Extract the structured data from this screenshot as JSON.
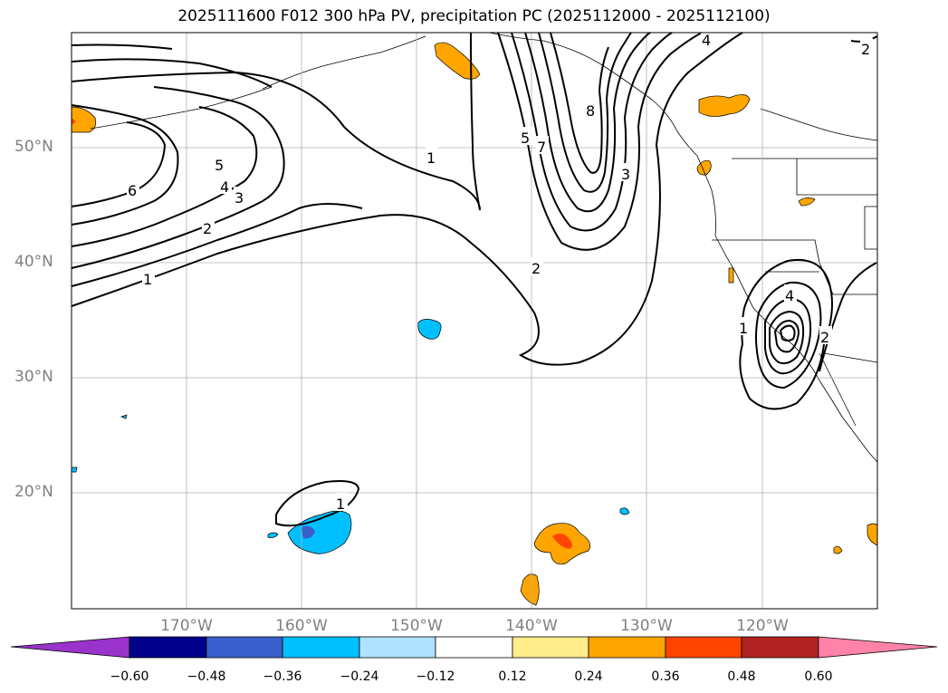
{
  "title": "2025111600 F012 300 hPa PV, precipitation PC (2025112000 - 2025112100)",
  "lat_labels": [
    "50°N",
    "40°N",
    "30°N",
    "20°N"
  ],
  "lon_labels": [
    "170°W",
    "160°W",
    "150°W",
    "140°W",
    "130°W",
    "120°W"
  ],
  "contour_labels": [
    "6",
    "5",
    "4",
    "3",
    "2",
    "1",
    "1",
    "5",
    "7",
    "8",
    "3",
    "2",
    "4",
    "1",
    "2",
    "4",
    "2",
    "1"
  ],
  "colorbar": {
    "ticks": [
      "−0.60",
      "−0.48",
      "−0.36",
      "−0.24",
      "−0.12",
      "0.12",
      "0.24",
      "0.36",
      "0.48",
      "0.60"
    ],
    "colors": [
      "#9933cc",
      "#00008b",
      "#3a5fcd",
      "#00bfff",
      "#b0e2ff",
      "#ffffff",
      "#ffec8b",
      "#ffa500",
      "#ff4500",
      "#b22222",
      "#ff83a8"
    ]
  }
}
